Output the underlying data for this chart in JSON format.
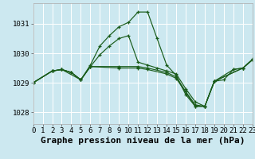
{
  "bg_color": "#cce8f0",
  "grid_color": "#ffffff",
  "line_color": "#1a5c1a",
  "xlim": [
    0,
    23
  ],
  "ylim": [
    1027.6,
    1031.7
  ],
  "yticks": [
    1028,
    1029,
    1030,
    1031
  ],
  "xticks": [
    0,
    1,
    2,
    3,
    4,
    5,
    6,
    7,
    8,
    9,
    10,
    11,
    12,
    13,
    14,
    15,
    16,
    17,
    18,
    19,
    20,
    21,
    22,
    23
  ],
  "series": [
    {
      "x": [
        0,
        2,
        3,
        4,
        5,
        6,
        7,
        8,
        9,
        10,
        11,
        12,
        13,
        14,
        15,
        16,
        17,
        18,
        19,
        21,
        22,
        23
      ],
      "y": [
        1029.0,
        1029.4,
        1029.45,
        1029.35,
        1029.1,
        1029.6,
        1030.25,
        1030.6,
        1030.9,
        1031.05,
        1031.4,
        1031.4,
        1030.5,
        1029.6,
        1029.25,
        1028.6,
        1028.2,
        1028.2,
        1029.05,
        1029.45,
        1029.5,
        1029.8
      ]
    },
    {
      "x": [
        0,
        2,
        3,
        4,
        5,
        6,
        9,
        11,
        12,
        14,
        15,
        16,
        17,
        18,
        19,
        22,
        23
      ],
      "y": [
        1029.0,
        1029.4,
        1029.45,
        1029.35,
        1029.1,
        1029.55,
        1029.55,
        1029.55,
        1029.5,
        1029.35,
        1029.2,
        1028.7,
        1028.25,
        1028.2,
        1029.05,
        1029.5,
        1029.78
      ]
    },
    {
      "x": [
        0,
        2,
        3,
        5,
        6,
        9,
        11,
        12,
        14,
        15,
        17,
        18,
        19,
        22,
        23
      ],
      "y": [
        1029.0,
        1029.4,
        1029.45,
        1029.1,
        1029.55,
        1029.5,
        1029.5,
        1029.45,
        1029.3,
        1029.15,
        1028.2,
        1028.2,
        1029.05,
        1029.5,
        1029.78
      ]
    },
    {
      "x": [
        0,
        2,
        3,
        4,
        5,
        6,
        7,
        8,
        9,
        10,
        11,
        12,
        13,
        14,
        15,
        16,
        17,
        18,
        19,
        20,
        21,
        22,
        23
      ],
      "y": [
        1029.0,
        1029.4,
        1029.45,
        1029.35,
        1029.1,
        1029.55,
        1029.95,
        1030.25,
        1030.5,
        1030.6,
        1029.7,
        1029.6,
        1029.5,
        1029.4,
        1029.3,
        1028.8,
        1028.35,
        1028.2,
        1029.05,
        1029.1,
        1029.45,
        1029.5,
        1029.78
      ]
    }
  ],
  "title": "Graphe pression niveau de la mer (hPa)",
  "title_fontsize": 8,
  "tick_fontsize": 6.5
}
